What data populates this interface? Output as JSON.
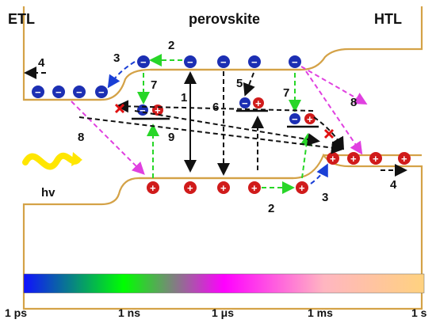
{
  "labels": {
    "etl": "ETL",
    "perovskite": "perovskite",
    "htl": "HTL",
    "light": "hv"
  },
  "process_numbers": {
    "p2_top": "2",
    "p3_top": "3",
    "p4_left": "4",
    "p5": "5",
    "p6": "6",
    "p1": "1",
    "p7_left": "7",
    "p7_right": "7",
    "p8_left": "8",
    "p8_right": "8",
    "p9": "9",
    "p2_bottom": "2",
    "p3_bottom": "3",
    "p4_right": "4"
  },
  "carriers": {
    "electron_symbol": "−",
    "hole_symbol": "+"
  },
  "timescale": {
    "ticks": [
      "1 ps",
      "1 ns",
      "1 μs",
      "1 ms",
      "1 s"
    ],
    "gradient_colors": [
      "#1010ff",
      "#00ff00",
      "#ff00ff",
      "#ffb6c1",
      "#ffd27f"
    ]
  },
  "colors": {
    "band_outline": "#d4a247",
    "electron_fill": "#1c2fb3",
    "hole_fill": "#d01b1b",
    "light_wave": "#ffe600",
    "recombination_mark": "#e01010"
  }
}
